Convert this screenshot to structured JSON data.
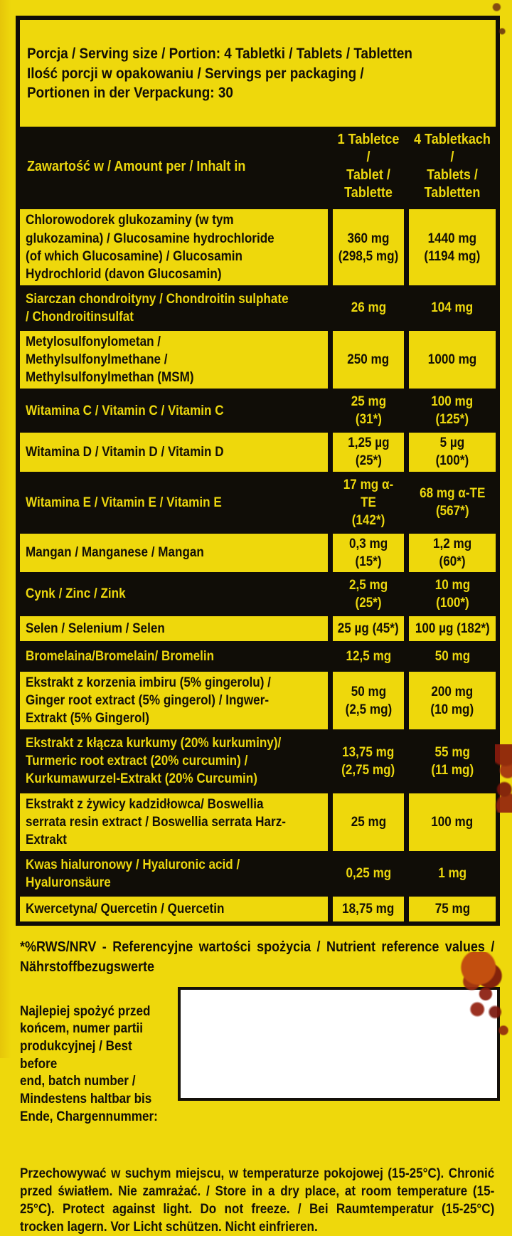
{
  "colors": {
    "background_yellow": "#eed80c",
    "panel_black": "#100d07",
    "text_black": "#14100a",
    "text_yellow": "#ecd70e",
    "box_white": "#ffffff",
    "stain_red": "#8a1b0d"
  },
  "serving_info": {
    "text": "Porcja / Serving size / Portion: 4 Tabletki / Tablets / Tabletten\nIlość porcji w opakowaniu / Servings per packaging /\nPortionen in der Verpackung: 30"
  },
  "table": {
    "header": {
      "name": "Zawartość w / Amount per / Inhalt in",
      "col1": "1 Tabletce /\nTablet /\nTablette",
      "col2": "4 Tabletkach /\nTablets /\nTabletten"
    },
    "rows": [
      {
        "name": "Chlorowodorek glukozaminy (w tym glukozamina) / Glucosamine hydrochloride (of which Glucosamine) / Glucosamin Hydrochlorid (davon Glucosamin)",
        "per_tablet": "360 mg\n(298,5 mg)",
        "per_serving": "1440 mg\n(1194 mg)"
      },
      {
        "name": "Siarczan chondroityny / Chondroitin sulphate / Chondroitinsulfat",
        "per_tablet": "26 mg",
        "per_serving": "104 mg"
      },
      {
        "name": "Metylosulfonylometan / Methylsulfonylmethane / Methylsulfonylmethan (MSM)",
        "per_tablet": "250 mg",
        "per_serving": "1000 mg"
      },
      {
        "name": "Witamina C / Vitamin C / Vitamin C",
        "per_tablet": "25 mg\n(31*)",
        "per_serving": "100 mg\n(125*)"
      },
      {
        "name": "Witamina D / Vitamin D / Vitamin D",
        "per_tablet": "1,25 µg\n(25*)",
        "per_serving": "5 µg\n(100*)"
      },
      {
        "name": "Witamina E / Vitamin E / Vitamin E",
        "per_tablet": "17 mg α-TE\n(142*)",
        "per_serving": "68 mg α-TE\n(567*)"
      },
      {
        "name": "Mangan / Manganese / Mangan",
        "per_tablet": "0,3 mg\n(15*)",
        "per_serving": "1,2 mg\n(60*)"
      },
      {
        "name": "Cynk / Zinc / Zink",
        "per_tablet": "2,5 mg\n(25*)",
        "per_serving": "10 mg\n(100*)"
      },
      {
        "name": "Selen / Selenium / Selen",
        "per_tablet": "25 µg (45*)",
        "per_serving": "100 µg (182*)"
      },
      {
        "name": "Bromelaina/Bromelain/ Bromelin",
        "per_tablet": "12,5 mg",
        "per_serving": "50 mg"
      },
      {
        "name": "Ekstrakt z korzenia imbiru (5% gingerolu) / Ginger root extract (5% gingerol) / Ingwer-Extrakt (5% Gingerol)",
        "per_tablet": "50 mg\n(2,5 mg)",
        "per_serving": "200 mg\n(10 mg)"
      },
      {
        "name": "Ekstrakt z kłącza kurkumy (20% kurkuminy)/ Turmeric root extract (20% curcumin) / Kurkumawurzel-Extrakt (20% Curcumin)",
        "per_tablet": "13,75 mg\n(2,75 mg)",
        "per_serving": "55 mg\n(11 mg)"
      },
      {
        "name": "Ekstrakt z żywicy kadzidłowca/ Boswellia serrata resin extract / Boswellia serrata Harz-Extrakt",
        "per_tablet": "25 mg",
        "per_serving": "100 mg"
      },
      {
        "name": "Kwas hialuronowy / Hyaluronic acid / Hyaluronsäure",
        "per_tablet": "0,25 mg",
        "per_serving": "1 mg"
      },
      {
        "name": "Kwercetyna/ Quercetin / Quercetin",
        "per_tablet": "18,75 mg",
        "per_serving": "75 mg"
      }
    ]
  },
  "footnote": "*%RWS/NRV - Referencyjne wartości spożycia / Nutrient reference values / Nährstoffbezugswerte",
  "best_before": {
    "label": "Najlepiej spożyć przed\nkońcem, numer partii\nprodukcyjnej / Best before\nend, batch number /\nMindestens haltbar bis\nEnde, Chargennummer:"
  },
  "storage": "Przechowywać w suchym miejscu, w temperaturze pokojowej (15-25°C). Chronić przed światłem. Nie zamrażać. / Store in a dry place, at room temperature (15-25°C). Protect against light. Do not freeze. / Bei Raumtemperatur (15-25°C) trocken lagern. Vor Licht schützen. Nicht einfrieren."
}
